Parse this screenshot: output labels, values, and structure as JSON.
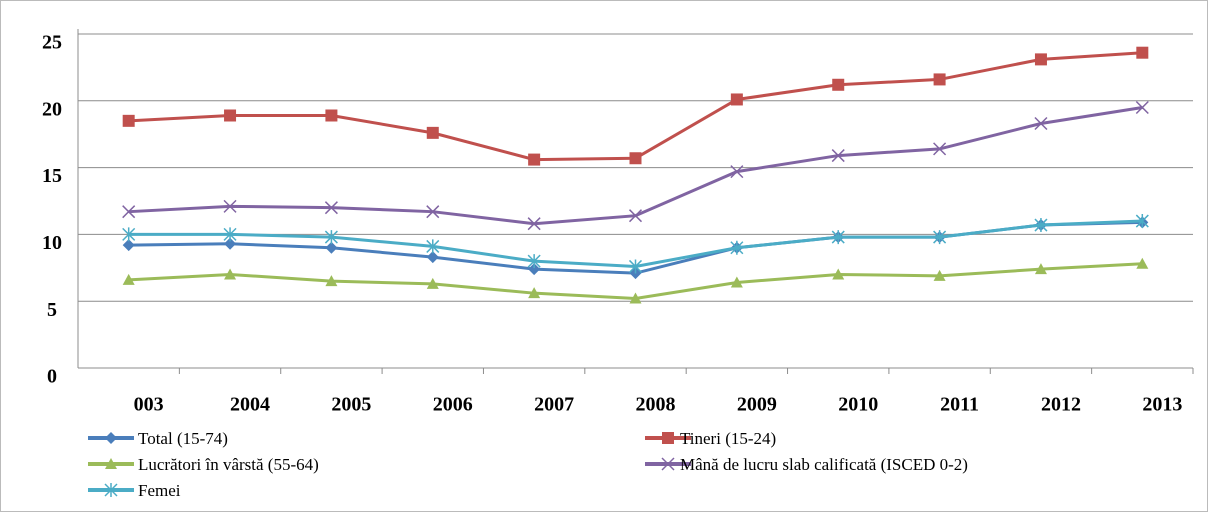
{
  "chart_data": {
    "type": "line",
    "categories": [
      "003",
      "2004",
      "2005",
      "2006",
      "2007",
      "2008",
      "2009",
      "2010",
      "2011",
      "2012",
      "2013"
    ],
    "series": [
      {
        "name": "Total (15-74)",
        "color": "#4a7ebb",
        "marker": "diamond",
        "values": [
          9.2,
          9.3,
          9.0,
          8.3,
          7.4,
          7.1,
          9.0,
          9.8,
          9.8,
          10.7,
          10.9
        ]
      },
      {
        "name": "Tineri (15-24)",
        "color": "#c0504d",
        "marker": "square",
        "values": [
          18.5,
          18.9,
          18.9,
          17.6,
          15.6,
          15.7,
          20.1,
          21.2,
          21.6,
          23.1,
          23.6
        ]
      },
      {
        "name": "Lucrători în vârstă (55-64)",
        "color": "#9bbb59",
        "marker": "triangle",
        "values": [
          6.6,
          7.0,
          6.5,
          6.3,
          5.6,
          5.2,
          6.4,
          7.0,
          6.9,
          7.4,
          7.8
        ]
      },
      {
        "name": "Mână de lucru slab calificată (ISCED 0-2)",
        "color": "#8064a2",
        "marker": "x",
        "values": [
          11.7,
          12.1,
          12.0,
          11.7,
          10.8,
          11.4,
          14.7,
          15.9,
          16.4,
          18.3,
          19.5
        ]
      },
      {
        "name": "Femei",
        "color": "#4bacc6",
        "marker": "star",
        "values": [
          10.0,
          10.0,
          9.8,
          9.1,
          8.0,
          7.6,
          9.0,
          9.8,
          9.8,
          10.7,
          11.0
        ]
      }
    ],
    "ylim": [
      0,
      25
    ],
    "yticks": [
      0,
      5,
      10,
      15,
      20,
      25
    ],
    "grid": true
  }
}
